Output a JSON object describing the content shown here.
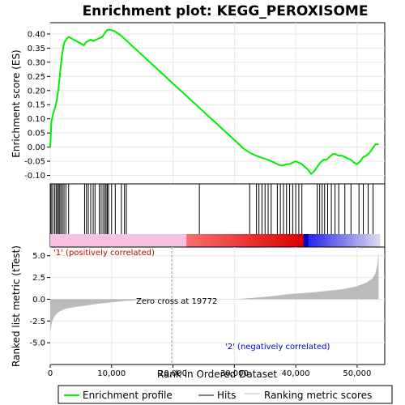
{
  "chart_data": {
    "type": "line",
    "title": "Enrichment plot: KEGG_PEROXISOME",
    "colors": {
      "enrichment_line": "#00ee00",
      "hits": "#000000",
      "metric_fill": "#bbbbbb",
      "positive_label": "#cc0000",
      "negative_label": "#0000cc",
      "zero_cross_line": "#aaaaaa"
    },
    "enrichment_panel": {
      "ylabel": "Enrichment score (ES)",
      "ylim": [
        -0.13,
        0.44
      ],
      "yticks": [
        -0.1,
        -0.05,
        0.0,
        0.05,
        0.1,
        0.15,
        0.2,
        0.25,
        0.3,
        0.35,
        0.4
      ],
      "ytick_labels": [
        "-0.10",
        "-0.05",
        "0.00",
        "0.05",
        "0.10",
        "0.15",
        "0.20",
        "0.25",
        "0.30",
        "0.35",
        "0.40"
      ],
      "series": [
        {
          "x": [
            0,
            200,
            500,
            800,
            1100,
            1300,
            1500,
            1700,
            1900,
            2100,
            2300,
            2600,
            3000,
            5500,
            5800,
            6200,
            6600,
            7000,
            7500,
            8000,
            8500,
            8800,
            9100,
            9400,
            9700,
            10500,
            11500,
            12500,
            13500,
            14500,
            15500,
            16500,
            17500,
            18500,
            19500,
            20500,
            21500,
            22500,
            23500,
            24500,
            25500,
            26500,
            27500,
            28500,
            29500,
            30500,
            31500,
            32500,
            33500,
            34500,
            35500,
            36000,
            36500,
            37000,
            37500,
            38000,
            38500,
            39000,
            39500,
            40000,
            40500,
            41000,
            41500,
            42000,
            42500,
            43000,
            43500,
            44000,
            44500,
            45000,
            45500,
            46000,
            46500,
            47000,
            47500,
            48000,
            48500,
            49000,
            49500,
            50000,
            50500,
            51000,
            51500,
            52000,
            52500,
            53000,
            53500
          ],
          "y": [
            0.0,
            0.09,
            0.12,
            0.14,
            0.17,
            0.2,
            0.24,
            0.28,
            0.32,
            0.35,
            0.37,
            0.38,
            0.39,
            0.36,
            0.37,
            0.375,
            0.38,
            0.375,
            0.38,
            0.385,
            0.39,
            0.4,
            0.41,
            0.415,
            0.415,
            0.41,
            0.395,
            0.375,
            0.355,
            0.335,
            0.315,
            0.295,
            0.275,
            0.255,
            0.235,
            0.215,
            0.195,
            0.175,
            0.155,
            0.135,
            0.115,
            0.095,
            0.075,
            0.055,
            0.035,
            0.015,
            -0.005,
            -0.02,
            -0.03,
            -0.038,
            -0.045,
            -0.05,
            -0.055,
            -0.06,
            -0.065,
            -0.065,
            -0.06,
            -0.06,
            -0.055,
            -0.05,
            -0.055,
            -0.06,
            -0.07,
            -0.08,
            -0.095,
            -0.085,
            -0.07,
            -0.055,
            -0.045,
            -0.045,
            -0.035,
            -0.025,
            -0.025,
            -0.03,
            -0.03,
            -0.035,
            -0.04,
            -0.045,
            -0.055,
            -0.06,
            -0.05,
            -0.035,
            -0.03,
            -0.02,
            -0.005,
            0.01,
            0.01
          ]
        }
      ]
    },
    "hits_panel": {
      "hit_positions": [
        150,
        400,
        700,
        950,
        1150,
        1350,
        1550,
        1750,
        2000,
        2250,
        2550,
        3000,
        5600,
        5900,
        6200,
        6600,
        7000,
        7300,
        8000,
        8300,
        8600,
        8900,
        9100,
        9300,
        9500,
        10000,
        10600,
        11600,
        12100,
        12400,
        24300,
        32500,
        33600,
        34000,
        34500,
        35000,
        35500,
        36000,
        37000,
        37500,
        38000,
        38500,
        39000,
        39500,
        40000,
        40500,
        41000,
        43500,
        43900,
        44300,
        44700,
        45200,
        45800,
        46400,
        47000,
        48000,
        49000,
        50300,
        51000,
        51800,
        52600
      ]
    },
    "metric_panel": {
      "ylabel": "Ranked list metric (tTest)",
      "ylim": [
        -7.5,
        6.0
      ],
      "yticks": [
        -5.0,
        -2.5,
        0.0,
        2.5,
        5.0
      ],
      "ytick_labels": [
        "-5.0",
        "-2.5",
        "0.0",
        "2.5",
        "5.0"
      ],
      "profile_x": [
        0,
        100,
        300,
        600,
        1000,
        1500,
        2500,
        4000,
        6000,
        8000,
        10000,
        12000,
        14000,
        16000,
        18000,
        19772,
        22000,
        26000,
        30000,
        33000,
        36000,
        39000,
        42000,
        45000,
        48000,
        50000,
        51500,
        52500,
        53000,
        53300,
        53500
      ],
      "profile_y": [
        -4.0,
        -3.3,
        -2.6,
        -2.1,
        -1.7,
        -1.4,
        -1.1,
        -0.9,
        -0.7,
        -0.5,
        -0.35,
        -0.2,
        -0.12,
        -0.07,
        -0.03,
        0.0,
        0.0,
        0.0,
        0.0,
        0.15,
        0.35,
        0.6,
        0.75,
        0.95,
        1.2,
        1.5,
        1.9,
        2.4,
        3.0,
        4.0,
        5.4
      ],
      "zero_cross_label": "Zero cross at 19772",
      "zero_cross_x": 19772,
      "positive_label": "'1' (positively correlated)",
      "negative_label": "'2' (negatively correlated)"
    },
    "xaxis": {
      "label": "Rank in Ordered Dataset",
      "xlim": [
        0,
        54500
      ],
      "ticks": [
        0,
        10000,
        20000,
        30000,
        40000,
        50000
      ],
      "tick_labels": [
        "0",
        "10,000",
        "20,000",
        "30,000",
        "40,000",
        "50,000"
      ]
    },
    "legend": {
      "entries": [
        {
          "label": "Enrichment profile",
          "color": "#00ee00"
        },
        {
          "label": "Hits",
          "color": "#000000"
        },
        {
          "label": "Ranking metric scores",
          "color": "#bbbbbb"
        }
      ],
      "placement": "bottom"
    },
    "grid": true
  }
}
